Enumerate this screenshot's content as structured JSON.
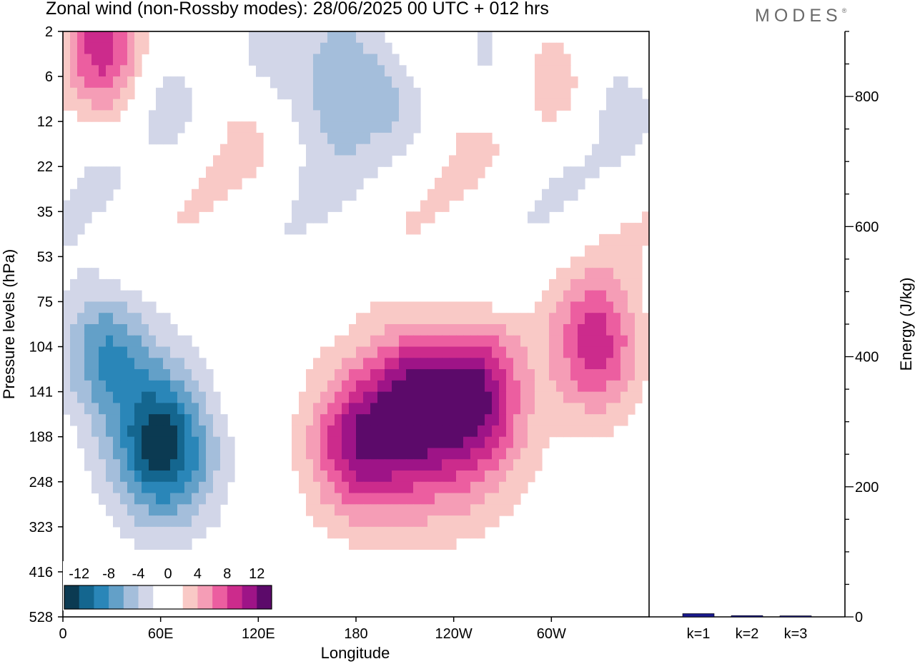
{
  "title": "Zonal wind (non-Rossby modes):  28/06/2025  00 UTC  + 012 hrs",
  "brand": "MODES",
  "brand_mark": "®",
  "chart_data": [
    {
      "type": "heatmap",
      "variable": "Zonal wind (non-Rossby modes)",
      "xlabel": "Longitude",
      "ylabel": "Pressure levels (hPa)",
      "x_ticks": [
        "0",
        "60E",
        "120E",
        "180",
        "120W",
        "60W"
      ],
      "x_tick_degrees": [
        0,
        60,
        120,
        180,
        240,
        300
      ],
      "xlim_degrees": [
        0,
        360
      ],
      "y_ticks": [
        2,
        6,
        12,
        22,
        35,
        53,
        75,
        104,
        141,
        188,
        248,
        323,
        416,
        528
      ],
      "y_scale": "categorical pressure levels (top 2 hPa, bottom 528 hPa)",
      "colorbar": {
        "labels": [
          "-12",
          "-8",
          "-4",
          "0",
          "4",
          "8",
          "12"
        ],
        "colors": [
          "#0b3a52",
          "#14668f",
          "#2a86b8",
          "#63a0c8",
          "#a4bedb",
          "#d2d6e8",
          "#ffffff",
          "#ffffff",
          "#f9c9c6",
          "#f59db6",
          "#ec5ea0",
          "#cc2b8c",
          "#9e1487",
          "#5c0a6a"
        ],
        "placement": "bottom-left"
      },
      "features": [
        {
          "label": "negative core",
          "lon": 60,
          "pressure": 188,
          "value": -10
        },
        {
          "label": "negative core",
          "lon": 25,
          "pressure": 104,
          "value": -8
        },
        {
          "label": "positive core",
          "lon": 217,
          "pressure": 141,
          "value": 10
        },
        {
          "label": "positive core",
          "lon": 255,
          "pressure": 141,
          "value": 10
        },
        {
          "label": "positive core",
          "lon": 180,
          "pressure": 188,
          "value": 8
        },
        {
          "label": "positive core",
          "lon": 328,
          "pressure": 104,
          "value": 9
        },
        {
          "label": "negative core",
          "lon": 165,
          "pressure": 6,
          "value": -8
        },
        {
          "label": "positive core",
          "lon": 25,
          "pressure": 2,
          "value": 7
        }
      ]
    },
    {
      "type": "bar",
      "categories": [
        "k=1",
        "k=2",
        "k=3"
      ],
      "values": [
        5,
        2,
        1
      ],
      "ylabel": "Energy (J/kg)",
      "y_ticks": [
        0,
        200,
        400,
        600,
        800
      ],
      "ylim": [
        0,
        900
      ],
      "bar_color": "#1a1a8c"
    }
  ]
}
